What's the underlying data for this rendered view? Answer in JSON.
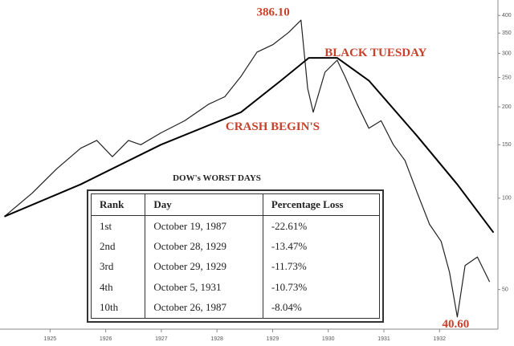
{
  "chart_data": {
    "type": "line",
    "log_scale": true,
    "grid": false,
    "xlim": [
      1924.1,
      1933.05
    ],
    "xticks": [
      1925,
      1926,
      1927,
      1928,
      1929,
      1930,
      1931,
      1932
    ],
    "ylim": [
      37,
      450
    ],
    "yticks": [
      50,
      100,
      150,
      200,
      250,
      300,
      350,
      400
    ],
    "series": [
      {
        "color": "#222222",
        "x": [
          1924.18,
          1924.68,
          1925.12,
          1925.55,
          1925.84,
          1926.12,
          1926.41,
          1926.63,
          1926.99,
          1927.42,
          1927.85,
          1928.14,
          1928.43,
          1928.72,
          1929.01,
          1929.29,
          1929.51,
          1929.63,
          1929.73,
          1929.94,
          1930.16,
          1930.3,
          1930.52,
          1930.73,
          1930.95,
          1931.17,
          1931.38,
          1931.6,
          1931.82,
          1932.03,
          1932.18,
          1932.32,
          1932.46,
          1932.68,
          1932.9
        ],
        "values": [
          87,
          104,
          125,
          146,
          155,
          137,
          155,
          150,
          164,
          180,
          204,
          216,
          252,
          303,
          321,
          352,
          386.1,
          230,
          192,
          260,
          285,
          252,
          204,
          170,
          180,
          150,
          133,
          104,
          82,
          72,
          57,
          40.6,
          60,
          64,
          53
        ]
      },
      {
        "color": "#000000",
        "x": [
          1924.18,
          1925.55,
          1926.99,
          1928.43,
          1929.15,
          1929.65,
          1930.16,
          1930.73,
          1931.6,
          1932.32,
          1932.97
        ],
        "values": [
          87,
          111,
          150,
          192,
          244,
          290,
          290,
          244,
          160,
          111,
          77
        ]
      }
    ],
    "annotations": [
      {
        "text": "386.10",
        "x": 1929.51,
        "y": 386.1
      },
      {
        "text": "BLACK TUESDAY",
        "x": 1929.82,
        "y": 300
      },
      {
        "text": "CRASH BEGIN'S",
        "x": 1929.0,
        "y": 171
      },
      {
        "text": "40.60",
        "x": 1932.32,
        "y": 40.6
      }
    ],
    "annotation_color": "#c8402a"
  },
  "table": {
    "title": "DOW's WORST DAYS",
    "columns": [
      "Rank",
      "Day",
      "Percentage Loss"
    ],
    "rows": [
      [
        "1st",
        "October 19, 1987",
        "-22.61%"
      ],
      [
        "2nd",
        "October 28, 1929",
        "-13.47%"
      ],
      [
        "3rd",
        "October 29, 1929",
        "-11.73%"
      ],
      [
        "4th",
        "October 5, 1931",
        "-10.73%"
      ],
      [
        "10th",
        "October 26, 1987",
        "-8.04%"
      ]
    ]
  }
}
